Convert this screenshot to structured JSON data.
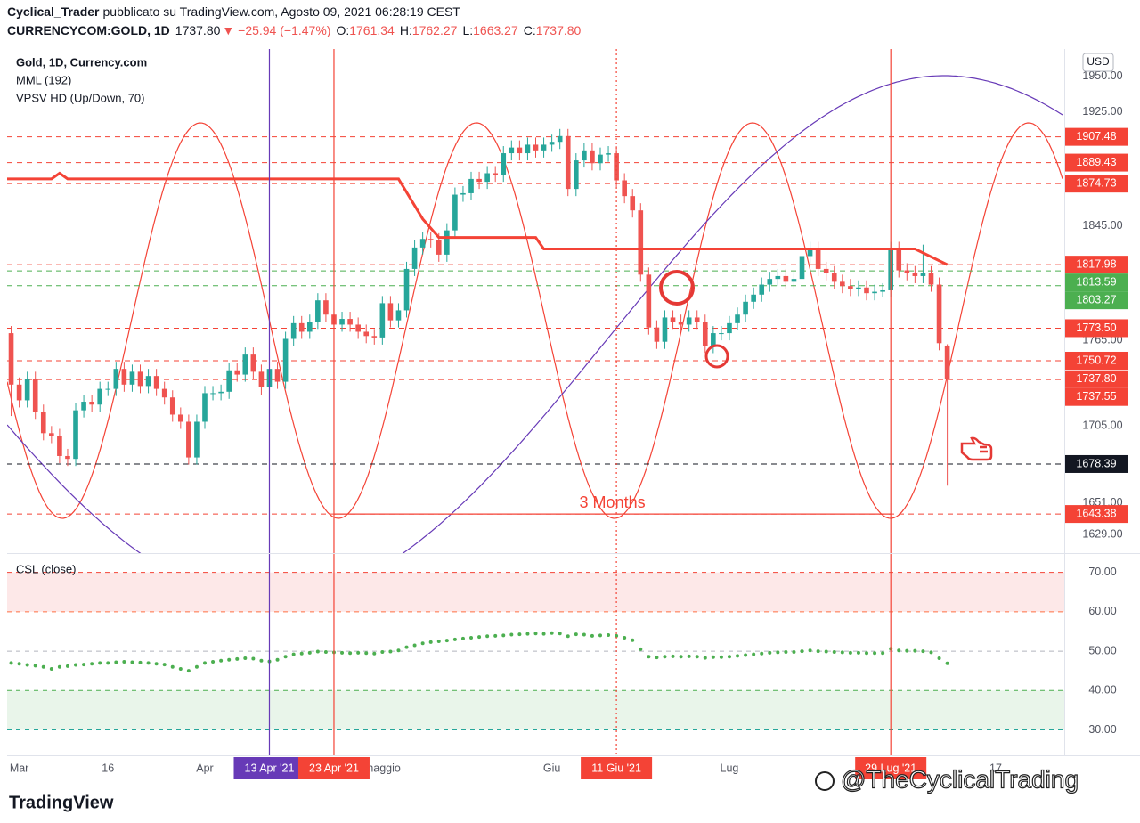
{
  "header": {
    "author": "Cyclical_Trader",
    "published": "pubblicato su TradingView.com, Agosto 09, 2021 06:28:19 CEST",
    "symbol": "CURRENCYCOM:GOLD, 1D",
    "last": "1737.80",
    "change": "▼ −25.94 (−1.47%)",
    "ohlc": [
      {
        "key": "O:",
        "value": "1761.34"
      },
      {
        "key": "H:",
        "value": "1762.27"
      },
      {
        "key": "L:",
        "value": "1663.27"
      },
      {
        "key": "C:",
        "value": "1737.80"
      }
    ]
  },
  "brand": "TradingView",
  "watermark": "@TheCyclicalTrading",
  "chart_data": {
    "type": "candlestick",
    "title": "Gold, 1D, Currency.com",
    "indicators": [
      "MML (192)",
      "VPSV HD (Up/Down, 70)"
    ],
    "currency": "USD",
    "up_color": "#26a69a",
    "down_color": "#ef5350",
    "xlim": [
      -0.5,
      130.5
    ],
    "ylim": [
      1616,
      1969
    ],
    "yticks": [
      {
        "value": 1950,
        "label": "1950.00"
      },
      {
        "value": 1925,
        "label": "1925.00"
      },
      {
        "value": 1845,
        "label": "1845.00"
      },
      {
        "value": 1765,
        "label": "1765.00"
      },
      {
        "value": 1705,
        "label": "1705.00"
      },
      {
        "value": 1651,
        "label": "1651.00"
      },
      {
        "value": 1629,
        "label": "1629.00"
      }
    ],
    "xticks": [
      {
        "value": 1,
        "label": "Mar"
      },
      {
        "value": 12,
        "label": "16"
      },
      {
        "value": 24,
        "label": "Apr"
      },
      {
        "value": 46,
        "label": "maggio"
      },
      {
        "value": 67,
        "label": "Giu"
      },
      {
        "value": 89,
        "label": "Lug"
      },
      {
        "value": 122,
        "label": "17"
      }
    ],
    "markers": [
      {
        "value": 32,
        "label": "13 Apr '21",
        "color": "#673ab7"
      },
      {
        "value": 40,
        "label": "23 Apr '21",
        "color": "#f44336"
      },
      {
        "value": 75,
        "label": "11 Giu '21",
        "color": "#f44336"
      },
      {
        "value": 109,
        "label": "29 Lug '21",
        "color": "#f44336"
      }
    ],
    "annotation": "3 Months",
    "levels": [
      {
        "value": 1907.48,
        "label": "1907.48",
        "color": "#f44336"
      },
      {
        "value": 1889.43,
        "label": "1889.43",
        "color": "#f44336"
      },
      {
        "value": 1874.73,
        "label": "1874.73",
        "color": "#f44336"
      },
      {
        "value": 1817.98,
        "label": "1817.98",
        "color": "#f44336"
      },
      {
        "value": 1813.59,
        "label": "1813.59",
        "color": "#4caf50"
      },
      {
        "value": 1803.27,
        "label": "1803.27",
        "color": "#4caf50"
      },
      {
        "value": 1773.5,
        "label": "1773.50",
        "color": "#f44336"
      },
      {
        "value": 1750.72,
        "label": "1750.72",
        "color": "#f44336"
      },
      {
        "value": 1737.8,
        "label": "1737.80",
        "color": "#f44336"
      },
      {
        "value": 1737.55,
        "label": "1737.55",
        "color": "#f44336"
      },
      {
        "value": 1678.39,
        "label": "1678.39",
        "color": "#131722"
      },
      {
        "value": 1643.38,
        "label": "1643.38",
        "color": "#f44336"
      }
    ],
    "candles": [
      [
        1770,
        1775,
        1712,
        1734
      ],
      [
        1734,
        1739,
        1718,
        1723
      ],
      [
        1723,
        1743,
        1718,
        1738
      ],
      [
        1738,
        1743,
        1710,
        1715
      ],
      [
        1715,
        1720,
        1695,
        1700
      ],
      [
        1700,
        1705,
        1693,
        1698
      ],
      [
        1698,
        1703,
        1679,
        1684
      ],
      [
        1684,
        1689,
        1677,
        1682
      ],
      [
        1682,
        1721,
        1677,
        1716
      ],
      [
        1716,
        1727,
        1711,
        1722
      ],
      [
        1722,
        1727,
        1715,
        1720
      ],
      [
        1720,
        1736,
        1715,
        1731
      ],
      [
        1731,
        1736,
        1726,
        1731
      ],
      [
        1731,
        1750,
        1726,
        1745
      ],
      [
        1745,
        1750,
        1729,
        1734
      ],
      [
        1734,
        1748,
        1729,
        1743
      ],
      [
        1743,
        1748,
        1728,
        1733
      ],
      [
        1733,
        1745,
        1728,
        1740
      ],
      [
        1740,
        1745,
        1726,
        1731
      ],
      [
        1731,
        1736,
        1720,
        1725
      ],
      [
        1725,
        1730,
        1708,
        1713
      ],
      [
        1713,
        1718,
        1703,
        1708
      ],
      [
        1708,
        1713,
        1678,
        1683
      ],
      [
        1683,
        1713,
        1678,
        1708
      ],
      [
        1708,
        1733,
        1703,
        1728
      ],
      [
        1728,
        1733,
        1723,
        1728
      ],
      [
        1728,
        1734,
        1723,
        1729
      ],
      [
        1729,
        1749,
        1724,
        1744
      ],
      [
        1744,
        1749,
        1736,
        1741
      ],
      [
        1741,
        1760,
        1736,
        1755
      ],
      [
        1755,
        1760,
        1738,
        1743
      ],
      [
        1743,
        1748,
        1727,
        1732
      ],
      [
        1732,
        1750,
        1727,
        1745
      ],
      [
        1745,
        1750,
        1731,
        1736
      ],
      [
        1736,
        1771,
        1731,
        1766
      ],
      [
        1766,
        1782,
        1761,
        1777
      ],
      [
        1777,
        1782,
        1766,
        1771
      ],
      [
        1771,
        1783,
        1766,
        1778
      ],
      [
        1778,
        1798,
        1773,
        1793
      ],
      [
        1793,
        1798,
        1778,
        1783
      ],
      [
        1783,
        1788,
        1771,
        1776
      ],
      [
        1776,
        1785,
        1771,
        1780
      ],
      [
        1780,
        1785,
        1771,
        1776
      ],
      [
        1776,
        1781,
        1766,
        1771
      ],
      [
        1771,
        1776,
        1763,
        1768
      ],
      [
        1768,
        1773,
        1762,
        1767
      ],
      [
        1767,
        1796,
        1762,
        1791
      ],
      [
        1791,
        1796,
        1774,
        1779
      ],
      [
        1779,
        1791,
        1774,
        1786
      ],
      [
        1786,
        1820,
        1781,
        1815
      ],
      [
        1815,
        1835,
        1810,
        1830
      ],
      [
        1830,
        1841,
        1825,
        1836
      ],
      [
        1836,
        1841,
        1830,
        1835
      ],
      [
        1835,
        1840,
        1820,
        1825
      ],
      [
        1825,
        1847,
        1820,
        1842
      ],
      [
        1842,
        1872,
        1837,
        1867
      ],
      [
        1867,
        1873,
        1862,
        1868
      ],
      [
        1868,
        1883,
        1863,
        1878
      ],
      [
        1878,
        1883,
        1871,
        1876
      ],
      [
        1876,
        1887,
        1871,
        1882
      ],
      [
        1882,
        1887,
        1876,
        1881
      ],
      [
        1881,
        1901,
        1876,
        1896
      ],
      [
        1896,
        1905,
        1891,
        1900
      ],
      [
        1900,
        1905,
        1891,
        1896
      ],
      [
        1896,
        1907,
        1891,
        1902
      ],
      [
        1902,
        1907,
        1893,
        1898
      ],
      [
        1898,
        1907,
        1893,
        1902
      ],
      [
        1902,
        1909,
        1897,
        1904
      ],
      [
        1904,
        1913,
        1899,
        1908
      ],
      [
        1908,
        1913,
        1866,
        1871
      ],
      [
        1871,
        1896,
        1866,
        1891
      ],
      [
        1891,
        1903,
        1886,
        1898
      ],
      [
        1898,
        1903,
        1884,
        1889
      ],
      [
        1889,
        1900,
        1884,
        1895
      ],
      [
        1895,
        1901,
        1890,
        1896
      ],
      [
        1896,
        1901,
        1872,
        1877
      ],
      [
        1877,
        1882,
        1861,
        1866
      ],
      [
        1866,
        1871,
        1851,
        1856
      ],
      [
        1856,
        1861,
        1806,
        1811
      ],
      [
        1811,
        1816,
        1769,
        1774
      ],
      [
        1774,
        1779,
        1759,
        1764
      ],
      [
        1764,
        1786,
        1759,
        1781
      ],
      [
        1781,
        1786,
        1773,
        1778
      ],
      [
        1778,
        1783,
        1771,
        1776
      ],
      [
        1776,
        1786,
        1771,
        1781
      ],
      [
        1781,
        1786,
        1773,
        1778
      ],
      [
        1778,
        1783,
        1756,
        1761
      ],
      [
        1761,
        1775,
        1756,
        1770
      ],
      [
        1770,
        1775,
        1765,
        1770
      ],
      [
        1770,
        1782,
        1765,
        1777
      ],
      [
        1777,
        1788,
        1772,
        1783
      ],
      [
        1783,
        1797,
        1778,
        1792
      ],
      [
        1792,
        1802,
        1787,
        1797
      ],
      [
        1797,
        1809,
        1792,
        1804
      ],
      [
        1804,
        1813,
        1799,
        1808
      ],
      [
        1808,
        1815,
        1803,
        1810
      ],
      [
        1810,
        1815,
        1801,
        1806
      ],
      [
        1806,
        1813,
        1801,
        1808
      ],
      [
        1808,
        1829,
        1803,
        1824
      ],
      [
        1824,
        1834,
        1819,
        1829
      ],
      [
        1829,
        1834,
        1810,
        1815
      ],
      [
        1815,
        1820,
        1807,
        1812
      ],
      [
        1812,
        1817,
        1801,
        1806
      ],
      [
        1806,
        1811,
        1798,
        1803
      ],
      [
        1803,
        1808,
        1796,
        1801
      ],
      [
        1801,
        1807,
        1796,
        1802
      ],
      [
        1802,
        1807,
        1793,
        1798
      ],
      [
        1798,
        1804,
        1793,
        1799
      ],
      [
        1799,
        1805,
        1795,
        1800
      ],
      [
        1800,
        1834,
        1795,
        1829
      ],
      [
        1829,
        1834,
        1809,
        1814
      ],
      [
        1814,
        1819,
        1807,
        1812
      ],
      [
        1812,
        1817,
        1805,
        1810
      ],
      [
        1810,
        1832,
        1805,
        1812
      ],
      [
        1812,
        1817,
        1799,
        1804
      ],
      [
        1804,
        1809,
        1758,
        1763
      ],
      [
        1761.34,
        1762.27,
        1663.27,
        1737.8
      ]
    ],
    "mml": {
      "color": "#f44336",
      "x": [
        -0.5,
        5,
        6,
        7,
        48,
        51,
        53,
        65,
        66,
        112,
        116
      ],
      "values": [
        1878,
        1878,
        1882,
        1878,
        1878,
        1850,
        1837,
        1837,
        1829,
        1829,
        1818
      ]
    },
    "csl": {
      "name": "CSL (close)",
      "color": "#4caf50",
      "ylim": [
        24,
        74
      ],
      "yticks": [
        {
          "value": 70,
          "label": "70.00"
        },
        {
          "value": 60,
          "label": "60.00"
        },
        {
          "value": 50,
          "label": "50.00"
        },
        {
          "value": 40,
          "label": "40.00"
        },
        {
          "value": 30,
          "label": "30.00"
        }
      ],
      "grid_colors": [
        "#f44336",
        "#ff7043",
        "#b2b5be",
        "#4caf50",
        "#26a69a"
      ],
      "bands": [
        {
          "from": 60,
          "to": 70,
          "color": "#fde8e8"
        },
        {
          "from": 30,
          "to": 40,
          "color": "#e9f5ea"
        }
      ],
      "values": [
        47,
        46.8,
        46.5,
        46.3,
        46,
        45.5,
        46,
        46.2,
        46.5,
        46.6,
        46.8,
        47,
        47,
        47.2,
        47.3,
        47.2,
        47.1,
        47,
        46.8,
        46.6,
        46,
        45.5,
        45,
        46,
        47,
        47.3,
        47.6,
        47.8,
        48,
        48.2,
        48.1,
        47.6,
        47.4,
        47.8,
        48.6,
        49.2,
        49.4,
        49.6,
        49.9,
        49.8,
        49.7,
        49.6,
        49.5,
        49.6,
        49.5,
        49.4,
        49.8,
        49.9,
        50.2,
        51,
        51.5,
        52,
        52.3,
        52.5,
        52.7,
        53,
        53.2,
        53.4,
        53.6,
        53.8,
        53.9,
        54,
        54.2,
        54.3,
        54.4,
        54.5,
        54.4,
        54.6,
        54.5,
        53.8,
        54.3,
        54.2,
        53.9,
        54,
        54.1,
        53.9,
        53.4,
        52.8,
        50.5,
        48.6,
        48.4,
        48.6,
        48.7,
        48.6,
        48.7,
        48.6,
        48.3,
        48.5,
        48.5,
        48.6,
        48.8,
        49,
        49.2,
        49.4,
        49.6,
        49.7,
        49.8,
        49.8,
        50,
        50.2,
        50,
        49.9,
        49.8,
        49.7,
        49.6,
        49.6,
        49.5,
        49.5,
        49.5,
        50.6,
        50.2,
        50.1,
        50.1,
        50,
        49.7,
        48.2,
        46.9
      ]
    }
  }
}
